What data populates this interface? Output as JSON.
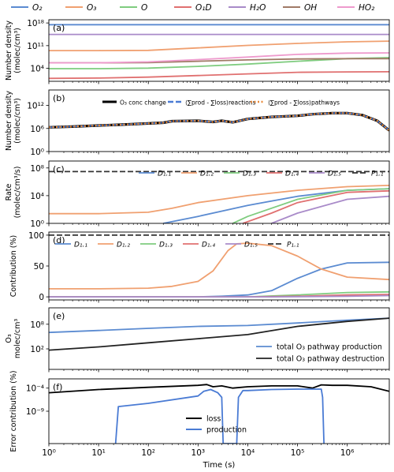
{
  "colors": {
    "blue": "#5B8BD1",
    "orange": "#F0A070",
    "green": "#7FCC7F",
    "red": "#E07070",
    "purple": "#A98BC9",
    "brown": "#A07A66",
    "pink": "#EE9ACD",
    "dark": "#222222",
    "prod": "#4A7BD4"
  },
  "chart_data": [
    {
      "panel": "(a)",
      "type": "line",
      "ylabel": [
        "Number density",
        "(molec/cm³)"
      ],
      "yscale": "log",
      "ylim": [
        1,
        1e+19
      ],
      "yticks": [
        "10⁴",
        "10¹¹",
        "10¹⁸"
      ],
      "xscale": "log",
      "xlim": [
        1,
        7000000
      ],
      "legend_placement": "above-figure",
      "series": [
        {
          "name": "O₂",
          "color": "blue",
          "x": [
            1,
            10,
            100,
            1000,
            10000,
            100000,
            1000000,
            7000000
          ],
          "y": [
            3e+17,
            3e+17,
            3e+17,
            3e+17,
            3e+17,
            3e+17,
            3e+17,
            3e+17
          ]
        },
        {
          "name": "O₃",
          "color": "orange",
          "x": [
            1,
            10,
            100,
            300,
            1000,
            10000,
            100000,
            1000000,
            7000000
          ],
          "y": [
            3000000000.0,
            3000000000.0,
            3500000000.0,
            8000000000.0,
            20000000000.0,
            120000000000.0,
            500000000000.0,
            1500000000000.0,
            2500000000000.0
          ]
        },
        {
          "name": "O",
          "color": "green",
          "x": [
            1,
            10,
            100,
            1000,
            10000,
            100000,
            1000000,
            7000000
          ],
          "y": [
            8000.0,
            8000.0,
            12000.0,
            40000.0,
            200000.0,
            1500000.0,
            10000000.0,
            20000000.0
          ]
        },
        {
          "name": "O₁D",
          "color": "red",
          "x": [
            1,
            10,
            100,
            1000,
            10000,
            100000,
            1000000,
            7000000
          ],
          "y": [
            8,
            10,
            20,
            60,
            200,
            600,
            800,
            900
          ]
        },
        {
          "name": "H₂O",
          "color": "purple",
          "x": [
            1,
            10,
            100,
            1000,
            10000,
            100000,
            1000000,
            7000000
          ],
          "y": [
            300000000000000.0,
            300000000000000.0,
            300000000000000.0,
            300000000000000.0,
            300000000000000.0,
            300000000000000.0,
            300000000000000.0,
            300000000000000.0
          ]
        },
        {
          "name": "OH",
          "color": "brown",
          "x": [
            1,
            10,
            100,
            1000,
            10000,
            100000,
            1000000,
            7000000
          ],
          "y": [
            500000.0,
            500000.0,
            600000.0,
            1500000.0,
            4000000.0,
            8000000.0,
            10000000.0,
            10000000.0
          ]
        },
        {
          "name": "HO₂",
          "color": "pink",
          "x": [
            1,
            10,
            100,
            1000,
            10000,
            100000,
            1000000,
            7000000
          ],
          "y": [
            500000.0,
            500000.0,
            1000000.0,
            5000000.0,
            30000000.0,
            200000000.0,
            500000000.0,
            600000000.0
          ]
        }
      ]
    },
    {
      "panel": "(b)",
      "type": "line",
      "ylabel": [
        "Number density",
        "(molec/cm³)"
      ],
      "yscale": "log",
      "ylim": [
        1,
        1e+16
      ],
      "yticks": [
        "10⁰",
        "10⁶",
        "10¹²"
      ],
      "xscale": "log",
      "xlim": [
        1,
        7000000
      ],
      "legend_placement": "top-right",
      "series": [
        {
          "name": "O₃ conc change",
          "color": "#000000",
          "style": "solid",
          "x": [
            1,
            3,
            10,
            30,
            100,
            200,
            300,
            1000,
            2000,
            3000,
            5000,
            10000,
            30000,
            100000,
            200000,
            500000,
            1000000,
            2000000,
            4000000,
            7000000
          ],
          "y": [
            2000000.0,
            3000000.0,
            6000000.0,
            10000000.0,
            20000000.0,
            30000000.0,
            80000000.0,
            100000000.0,
            50000000.0,
            100000000.0,
            40000000.0,
            300000000.0,
            1000000000.0,
            2000000000.0,
            5000000000.0,
            10000000000.0,
            10000000000.0,
            3000000000.0,
            100000000.0,
            300000.0
          ]
        },
        {
          "name": "⟨∑prod - ∑loss⟩reactions",
          "color": "#4A7BD4",
          "style": "dashed",
          "x": [
            1,
            3,
            10,
            30,
            100,
            200,
            300,
            1000,
            2000,
            3000,
            5000,
            10000,
            30000,
            100000,
            200000,
            500000,
            1000000,
            2000000,
            4000000,
            7000000
          ],
          "y": [
            2000000.0,
            3000000.0,
            6000000.0,
            10000000.0,
            20000000.0,
            30000000.0,
            80000000.0,
            100000000.0,
            50000000.0,
            100000000.0,
            40000000.0,
            300000000.0,
            1000000000.0,
            2000000000.0,
            5000000000.0,
            10000000000.0,
            10000000000.0,
            3000000000.0,
            100000000.0,
            300000.0
          ]
        },
        {
          "name": "⟨∑prod - ∑loss⟩pathways",
          "color": "#E8893A",
          "style": "dotted",
          "x": [
            1,
            3,
            10,
            30,
            100,
            200,
            300,
            1000,
            2000,
            3000,
            5000,
            10000,
            30000,
            100000,
            200000,
            500000,
            1000000,
            2000000,
            4000000,
            7000000
          ],
          "y": [
            2000000.0,
            3000000.0,
            6000000.0,
            10000000.0,
            20000000.0,
            30000000.0,
            80000000.0,
            100000000.0,
            50000000.0,
            100000000.0,
            40000000.0,
            300000000.0,
            1000000000.0,
            2000000000.0,
            5000000000.0,
            10000000000.0,
            10000000000.0,
            3000000000.0,
            100000000.0,
            300000.0
          ]
        }
      ]
    },
    {
      "panel": "(c)",
      "type": "line",
      "ylabel": [
        "Rate",
        "(molec/cm³/s)"
      ],
      "yscale": "log",
      "ylim": [
        1,
        1000000000.0
      ],
      "yticks": [
        "10⁰",
        "10⁴",
        "10⁸"
      ],
      "xscale": "log",
      "xlim": [
        1,
        7000000
      ],
      "legend_placement": "top-right",
      "series": [
        {
          "name": "D₁.₁",
          "color": "blue",
          "style": "solid",
          "x": [
            200,
            1000,
            10000,
            100000,
            1000000,
            7000000
          ],
          "y": [
            1,
            10,
            400,
            8000,
            60000,
            100000
          ]
        },
        {
          "name": "D₁.₂",
          "color": "orange",
          "style": "solid",
          "x": [
            1,
            10,
            100,
            300,
            1000,
            10000,
            100000,
            1000000,
            7000000
          ],
          "y": [
            25,
            25,
            40,
            150,
            1000,
            10000,
            60000,
            200000,
            300000
          ]
        },
        {
          "name": "D₁.₃",
          "color": "green",
          "style": "solid",
          "x": [
            5000,
            10000,
            100000,
            1000000,
            7000000
          ],
          "y": [
            1,
            10,
            3000,
            60000,
            100000
          ]
        },
        {
          "name": "D₁.₄",
          "color": "red",
          "style": "solid",
          "x": [
            8000,
            30000,
            100000,
            1000000,
            7000000
          ],
          "y": [
            1,
            30,
            1000,
            30000,
            50000
          ]
        },
        {
          "name": "D₁.₅",
          "color": "purple",
          "style": "solid",
          "x": [
            30000,
            100000,
            1000000,
            7000000
          ],
          "y": [
            1,
            30,
            3000,
            8000
          ]
        },
        {
          "name": "P₁.₁",
          "color": "#333333",
          "style": "dashed",
          "x": [
            1,
            7000000
          ],
          "y": [
            30000000,
            30000000
          ]
        }
      ]
    },
    {
      "panel": "(d)",
      "type": "line",
      "ylabel": [
        "Contribution (%)"
      ],
      "yscale": "linear",
      "ylim": [
        -5,
        105
      ],
      "yticks": [
        "0",
        "50",
        "100"
      ],
      "ytick_values": [
        0,
        50,
        100
      ],
      "xscale": "log",
      "xlim": [
        1,
        7000000
      ],
      "legend_placement": "top",
      "series": [
        {
          "name": "D₁.₁",
          "color": "blue",
          "style": "solid",
          "x": [
            1,
            100,
            1000,
            3000,
            10000,
            30000,
            100000,
            300000,
            1000000,
            7000000
          ],
          "y": [
            0,
            0,
            0,
            1,
            3,
            10,
            30,
            45,
            55,
            56
          ]
        },
        {
          "name": "D₁.₂",
          "color": "orange",
          "style": "solid",
          "x": [
            1,
            10,
            100,
            300,
            1000,
            2000,
            4000,
            6000,
            10000,
            30000,
            100000,
            300000,
            1000000,
            7000000
          ],
          "y": [
            13,
            13,
            14,
            17,
            25,
            42,
            75,
            86,
            87,
            83,
            66,
            45,
            32,
            28
          ]
        },
        {
          "name": "D₁.₃",
          "color": "green",
          "style": "solid",
          "x": [
            1,
            10000,
            100000,
            1000000,
            7000000
          ],
          "y": [
            0,
            0,
            3,
            7,
            8
          ]
        },
        {
          "name": "D₁.₄",
          "color": "red",
          "style": "solid",
          "x": [
            1,
            10000,
            100000,
            1000000,
            7000000
          ],
          "y": [
            0,
            0,
            1,
            3,
            4
          ]
        },
        {
          "name": "D₁.₅",
          "color": "purple",
          "style": "solid",
          "x": [
            1,
            30000,
            1000000,
            7000000
          ],
          "y": [
            0,
            0,
            1,
            2
          ]
        },
        {
          "name": "P₁.₁",
          "color": "#333333",
          "style": "dashed",
          "x": [
            1,
            7000000
          ],
          "y": [
            100,
            100
          ]
        }
      ]
    },
    {
      "panel": "(e)",
      "type": "line",
      "ylabel": [
        "O₃",
        "molec/cm³"
      ],
      "yscale": "log",
      "ylim": [
        0.001,
        1000000000000.0
      ],
      "yticks": [
        "10²",
        "10⁸"
      ],
      "xscale": "log",
      "xlim": [
        1,
        7000000
      ],
      "legend_placement": "lower-right",
      "series": [
        {
          "name": "total O₃ pathway production",
          "color": "#5B8BD1",
          "style": "solid",
          "x": [
            1,
            10,
            100,
            1000,
            10000,
            100000,
            1000000,
            7000000
          ],
          "y": [
            1000000.0,
            3000000.0,
            10000000.0,
            30000000.0,
            50000000.0,
            200000000.0,
            1000000000.0,
            3000000000.0
          ]
        },
        {
          "name": "total O₃ pathway destruction",
          "color": "#222222",
          "style": "solid",
          "x": [
            1,
            10,
            100,
            1000,
            10000,
            100000,
            1000000,
            7000000
          ],
          "y": [
            50,
            300,
            3000,
            30000,
            300000,
            30000000.0,
            500000000.0,
            3000000000.0
          ]
        }
      ]
    },
    {
      "panel": "(f)",
      "type": "line",
      "ylabel": [
        "Error contribution (%)"
      ],
      "yscale": "log",
      "ylim": [
        1e-16,
        0.01
      ],
      "yticks": [
        "10⁻⁹",
        "10⁻⁴"
      ],
      "xscale": "log",
      "xlim": [
        1,
        7000000
      ],
      "legend_placement": "center",
      "series": [
        {
          "name": "loss",
          "color": "#000000",
          "style": "solid",
          "x": [
            1,
            10,
            100,
            1000,
            1500,
            2000,
            3000,
            5000,
            10000,
            30000,
            100000,
            200000,
            300000,
            500000,
            1000000,
            3000000,
            7000000
          ],
          "y": [
            1e-05,
            5e-05,
            0.00015,
            0.0004,
            0.0006,
            0.0002,
            0.0003,
            0.0001,
            0.0002,
            0.0003,
            0.0003,
            0.0001,
            0.0005,
            0.0004,
            0.0004,
            0.0002,
            2e-05
          ]
        },
        {
          "name": "production",
          "color": "#4A7BD4",
          "style": "solid",
          "x": [
            22,
            25,
            100,
            1000,
            1300,
            1800,
            2500,
            3000,
            3200,
            6000,
            6500,
            8000,
            10000,
            30000,
            100000,
            300000,
            320000,
            340000
          ],
          "y": [
            1e-16,
            1e-08,
            5e-08,
            2e-06,
            2e-05,
            5e-05,
            1e-05,
            1e-06,
            1e-16,
            1e-16,
            1e-06,
            3e-05,
            3e-05,
            5e-05,
            6e-05,
            6e-05,
            1e-06,
            1e-16
          ]
        }
      ]
    }
  ],
  "xaxis": {
    "label": "Time (s)",
    "ticks": [
      {
        "value": 1,
        "label": "10⁰"
      },
      {
        "value": 10,
        "label": "10¹"
      },
      {
        "value": 100,
        "label": "10²"
      },
      {
        "value": 1000,
        "label": "10³"
      },
      {
        "value": 10000,
        "label": "10⁴"
      },
      {
        "value": 100000,
        "label": "10⁵"
      },
      {
        "value": 1000000,
        "label": "10⁶"
      }
    ]
  }
}
